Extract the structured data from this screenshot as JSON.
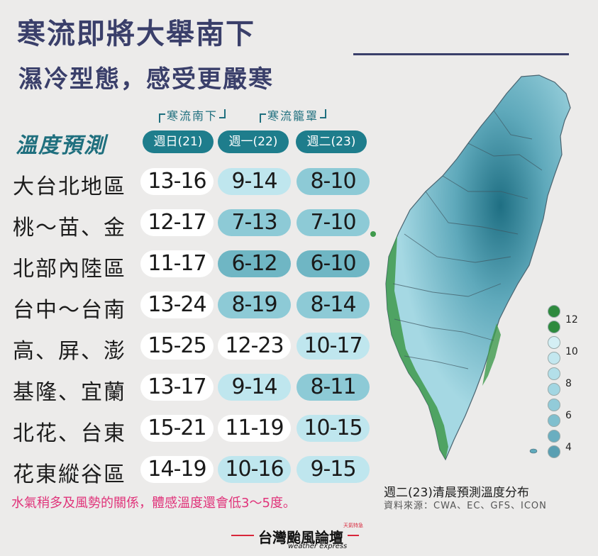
{
  "title": "寒流即將大舉南下",
  "subtitle": "濕冷型態，感受更嚴寒",
  "groups": {
    "cold_south": "寒流南下",
    "cold_cover": "寒流籠罩"
  },
  "section_label": "溫度預測",
  "days": [
    "週日(21)",
    "週一(22)",
    "週二(23)"
  ],
  "rows": [
    {
      "region": "大台北地區",
      "temps": [
        "13-16",
        "9-14",
        "8-10"
      ]
    },
    {
      "region": "桃～苗、金",
      "temps": [
        "12-17",
        "7-13",
        "7-10"
      ]
    },
    {
      "region": "北部內陸區",
      "temps": [
        "11-17",
        "6-12",
        "6-10"
      ]
    },
    {
      "region": "台中～台南",
      "temps": [
        "13-24",
        "8-19",
        "8-14"
      ]
    },
    {
      "region": "高、屏、澎",
      "temps": [
        "15-25",
        "12-23",
        "10-17"
      ]
    },
    {
      "region": "基隆、宜蘭",
      "temps": [
        "13-17",
        "9-14",
        "8-11"
      ]
    },
    {
      "region": "北花、台東",
      "temps": [
        "15-21",
        "11-19",
        "10-15"
      ]
    },
    {
      "region": "花東縱谷區",
      "temps": [
        "14-19",
        "10-16",
        "9-15"
      ]
    }
  ],
  "note": "水氣稍多及風勢的關係，體感溫度還會低3～5度。",
  "map": {
    "caption": "週二(23)清晨預測溫度分布",
    "source": "資料來源：CWA、EC、GFS、ICON",
    "legend_labels": [
      "12",
      "10",
      "8",
      "6",
      "4"
    ]
  },
  "brand": {
    "name": "台灣颱風論壇",
    "en": "weather express",
    "tag": "天氣特急"
  },
  "colors": {
    "title": "#3a3f6a",
    "accent_teal": "#1e7d8c",
    "note_pink": "#e0337a",
    "brand_red": "#d8263a",
    "pill_white": "#ffffff",
    "pill_light": "#bfe6ee",
    "pill_mid": "#8dcad6",
    "pill_dark": "#6fb6c4"
  }
}
